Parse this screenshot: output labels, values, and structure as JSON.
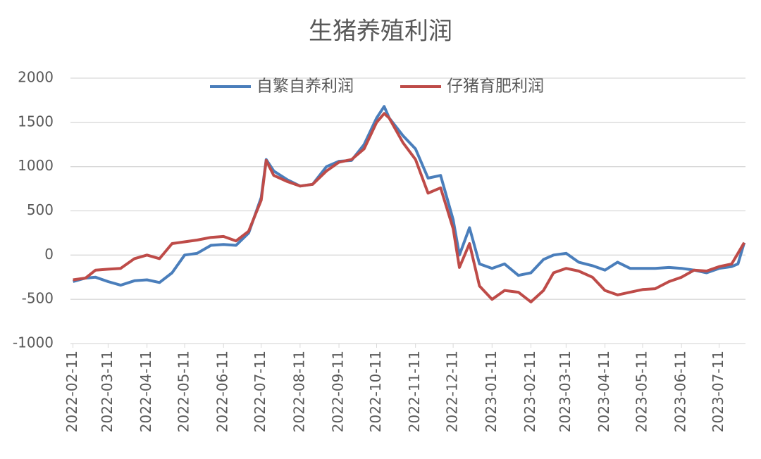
{
  "chart_data": {
    "type": "line",
    "title": "生猪养殖利润",
    "x": [
      "2022-02-11",
      "2022-02-21",
      "2022-03-01",
      "2022-03-11",
      "2022-03-21",
      "2022-04-01",
      "2022-04-11",
      "2022-04-21",
      "2022-05-01",
      "2022-05-11",
      "2022-05-21",
      "2022-06-01",
      "2022-06-11",
      "2022-06-21",
      "2022-07-01",
      "2022-07-11",
      "2022-07-15",
      "2022-07-21",
      "2022-08-01",
      "2022-08-11",
      "2022-08-21",
      "2022-09-01",
      "2022-09-11",
      "2022-09-21",
      "2022-10-01",
      "2022-10-11",
      "2022-10-17",
      "2022-10-21",
      "2022-11-01",
      "2022-11-11",
      "2022-11-21",
      "2022-12-01",
      "2022-12-11",
      "2022-12-16",
      "2022-12-24",
      "2023-01-01",
      "2023-01-11",
      "2023-01-21",
      "2023-02-01",
      "2023-02-11",
      "2023-02-21",
      "2023-03-01",
      "2023-03-11",
      "2023-03-21",
      "2023-04-01",
      "2023-04-11",
      "2023-04-21",
      "2023-05-01",
      "2023-05-11",
      "2023-05-21",
      "2023-06-01",
      "2023-06-11",
      "2023-06-21",
      "2023-07-01",
      "2023-07-11",
      "2023-07-21",
      "2023-07-26",
      "2023-07-31"
    ],
    "series": [
      {
        "name": "自繁自养利润",
        "color": "#4a7ebb",
        "values": [
          -300,
          -260,
          -250,
          -300,
          -340,
          -290,
          -280,
          -310,
          -200,
          0,
          20,
          110,
          120,
          110,
          250,
          650,
          1080,
          950,
          850,
          780,
          800,
          1000,
          1060,
          1070,
          1250,
          1550,
          1680,
          1550,
          1350,
          1200,
          870,
          900,
          400,
          0,
          310,
          -100,
          -150,
          -100,
          -230,
          -200,
          -50,
          0,
          20,
          -80,
          -120,
          -170,
          -80,
          -150,
          -150,
          -150,
          -140,
          -150,
          -170,
          -200,
          -150,
          -130,
          -100,
          140
        ]
      },
      {
        "name": "仔猪育肥利润",
        "color": "#be4b48",
        "values": [
          -280,
          -260,
          -170,
          -160,
          -150,
          -40,
          0,
          -40,
          130,
          150,
          170,
          200,
          210,
          160,
          270,
          620,
          1070,
          900,
          830,
          780,
          800,
          950,
          1050,
          1080,
          1200,
          1500,
          1600,
          1550,
          1270,
          1080,
          700,
          760,
          300,
          -140,
          130,
          -350,
          -500,
          -400,
          -420,
          -530,
          -400,
          -200,
          -150,
          -180,
          -250,
          -400,
          -450,
          -420,
          -390,
          -380,
          -300,
          -250,
          -170,
          -180,
          -130,
          -100,
          20,
          140
        ]
      }
    ],
    "xlim": [
      "2022-02-09",
      "2023-08-01"
    ],
    "xticks": [
      "2022-02-11",
      "2022-03-11",
      "2022-04-11",
      "2022-05-11",
      "2022-06-11",
      "2022-07-11",
      "2022-08-11",
      "2022-09-11",
      "2022-10-11",
      "2022-11-11",
      "2022-12-11",
      "2023-01-11",
      "2023-02-11",
      "2023-03-11",
      "2023-04-11",
      "2023-05-11",
      "2023-06-11",
      "2023-07-11"
    ],
    "ylim": [
      -1000,
      2000
    ],
    "yticks": [
      -1000,
      -500,
      0,
      500,
      1000,
      1500,
      2000
    ],
    "grid": true,
    "legend": "top"
  }
}
